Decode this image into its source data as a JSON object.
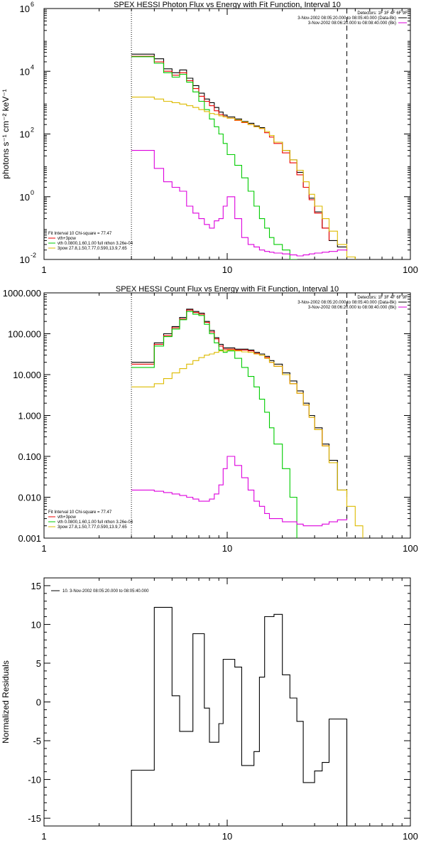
{
  "chart_data": [
    {
      "type": "line",
      "title": "SPEX HESSI Photon Flux vs Energy with Fit Function, Interval 10",
      "xlabel": "",
      "ylabel": "photons s⁻¹ cm⁻² keV⁻¹",
      "x_scale": "log",
      "y_scale": "log",
      "xlim": [
        1,
        100
      ],
      "ylim": [
        0.01,
        1000000
      ],
      "x_ticks": [
        {
          "v": 1,
          "label": "1"
        },
        {
          "v": 10,
          "label": "10"
        },
        {
          "v": 100,
          "label": "100"
        }
      ],
      "y_ticks": [
        {
          "v": 0.01,
          "base": "10",
          "exp": "-2"
        },
        {
          "v": 1,
          "base": "10",
          "exp": "0"
        },
        {
          "v": 100,
          "base": "10",
          "exp": "2"
        },
        {
          "v": 10000,
          "base": "10",
          "exp": "4"
        },
        {
          "v": 1000000,
          "base": "10",
          "exp": "6"
        }
      ],
      "vlines": [
        {
          "x": 3.0,
          "style": "dotted"
        },
        {
          "x": 45.0,
          "style": "dashed"
        }
      ],
      "legend_top": [
        {
          "text": "Detectors: 1F 3F 4F 6F 9F",
          "color": "#000000",
          "line": false
        },
        {
          "text": "3-Nov-2002 08:05:20.000 to 08:05:40.000 (Data-Bk)",
          "color": "#000000",
          "line": true
        },
        {
          "text": "3-Nov-2002 08:06:20.000 to 08:08:40.000 (Bk)",
          "color": "#dd00dd",
          "line": true
        }
      ],
      "legend_bottom": [
        {
          "text": "Fit Interval 10    Chi-square = 77.47",
          "color": "#000000",
          "line": false
        },
        {
          "text": "vth+3pow",
          "color": "#ee0000",
          "line": true
        },
        {
          "text": "vth 0.0800,1.60,1.00  full nthon 3.26e-04",
          "color": "#00cc00",
          "line": true
        },
        {
          "text": "3pow 27.8,1.50,7.77,0.590,13.9,7.65",
          "color": "#ddbb00",
          "line": true
        }
      ],
      "series": [
        {
          "color": "#000000",
          "x": [
            3.0,
            3.5,
            4.0,
            4.5,
            5.0,
            5.5,
            6.0,
            6.5,
            7.0,
            7.5,
            8.0,
            8.5,
            9.0,
            9.5,
            10.0,
            11.0,
            12.0,
            13.0,
            14.0,
            15.0,
            16.0,
            17.0,
            18.0,
            20.0,
            22.0,
            24.0,
            26.0,
            28.0,
            30.0,
            33.0,
            36.0,
            40.0,
            45.0
          ],
          "y": [
            35000,
            35000,
            25000,
            12000,
            9000,
            11000,
            6000,
            3500,
            2000,
            1300,
            1000,
            700,
            500,
            400,
            350,
            300,
            250,
            220,
            180,
            160,
            120,
            90,
            55,
            30,
            15,
            6,
            2,
            0.9,
            0.33,
            0.1,
            0.04,
            0.025,
            0.02
          ]
        },
        {
          "color": "#ee0000",
          "x": [
            3.0,
            3.5,
            4.0,
            4.5,
            5.0,
            5.5,
            6.0,
            6.5,
            7.0,
            7.5,
            8.0,
            8.5,
            9.0,
            9.5,
            10.0,
            11.0,
            12.0,
            13.0,
            14.0,
            15.0,
            16.0,
            17.0,
            18.0,
            20.0,
            22.0,
            24.0,
            26.0,
            28.0,
            30.0,
            33.0,
            36.0
          ],
          "y": [
            30000,
            30000,
            20000,
            10000,
            7500,
            9000,
            5000,
            2800,
            1600,
            1100,
            800,
            550,
            420,
            360,
            320,
            270,
            230,
            200,
            170,
            150,
            110,
            80,
            50,
            25,
            12,
            5,
            2,
            0.8,
            0.3,
            0.1,
            0.04
          ]
        },
        {
          "color": "#00cc00",
          "x": [
            3.0,
            3.5,
            4.0,
            4.5,
            5.0,
            5.5,
            6.0,
            6.5,
            7.0,
            7.5,
            8.0,
            8.5,
            9.0,
            9.5,
            10.0,
            11.0,
            12.0,
            13.0,
            14.0,
            15.0,
            16.0,
            17.0,
            18.0,
            20.0,
            22.0,
            24.0
          ],
          "y": [
            29000,
            29000,
            18000,
            9000,
            6500,
            8000,
            4500,
            2200,
            1100,
            600,
            300,
            170,
            100,
            50,
            22,
            10,
            4,
            1.5,
            0.5,
            0.2,
            0.1,
            0.05,
            0.03,
            0.02,
            0.01,
            0.005
          ]
        },
        {
          "color": "#ddbb00",
          "x": [
            3.0,
            3.5,
            4.0,
            4.5,
            5.0,
            5.5,
            6.0,
            6.5,
            7.0,
            7.5,
            8.0,
            8.5,
            9.0,
            9.5,
            10.0,
            11.0,
            12.0,
            13.0,
            14.0,
            15.0,
            16.0,
            17.0,
            18.0,
            20.0,
            22.0,
            24.0,
            26.0,
            28.0,
            30.0,
            33.0,
            36.0,
            40.0,
            45.0,
            50.0
          ],
          "y": [
            1500,
            1500,
            1300,
            1100,
            1000,
            900,
            800,
            700,
            600,
            520,
            450,
            420,
            380,
            350,
            320,
            280,
            240,
            200,
            170,
            150,
            120,
            90,
            55,
            30,
            15,
            7,
            3,
            1.2,
            0.5,
            0.2,
            0.08,
            0.03,
            0.012,
            0.005
          ]
        },
        {
          "color": "#dd00dd",
          "x": [
            3.0,
            3.5,
            4.0,
            4.5,
            5.0,
            5.5,
            6.0,
            6.5,
            7.0,
            7.5,
            8.0,
            8.5,
            9.0,
            9.5,
            10.0,
            11.0,
            12.0,
            13.0,
            14.0,
            15.0,
            16.0,
            17.0,
            18.0,
            20.0,
            22.0,
            24.0,
            26.0,
            28.0,
            30.0,
            33.0,
            36.0,
            40.0,
            45.0
          ],
          "y": [
            30,
            30,
            8,
            3,
            2,
            1.5,
            0.5,
            0.3,
            0.2,
            0.13,
            0.1,
            0.17,
            0.2,
            0.5,
            1,
            0.2,
            0.05,
            0.03,
            0.025,
            0.02,
            0.018,
            0.017,
            0.016,
            0.015,
            0.014,
            0.013,
            0.014,
            0.015,
            0.016,
            0.017,
            0.018,
            0.02,
            0.019
          ]
        }
      ]
    },
    {
      "type": "line",
      "title": "SPEX HESSI Count Flux vs Energy with Fit Function, Interval 10",
      "xlabel": "",
      "ylabel": "",
      "x_scale": "log",
      "y_scale": "log",
      "xlim": [
        1,
        100
      ],
      "ylim": [
        0.001,
        1000
      ],
      "x_ticks": [
        {
          "v": 1,
          "label": "1"
        },
        {
          "v": 10,
          "label": "10"
        },
        {
          "v": 100,
          "label": "100"
        }
      ],
      "y_ticks": [
        {
          "v": 0.001,
          "label": "0.001"
        },
        {
          "v": 0.01,
          "label": "0.010"
        },
        {
          "v": 0.1,
          "label": "0.100"
        },
        {
          "v": 1,
          "label": "1.000"
        },
        {
          "v": 10,
          "label": "10.000"
        },
        {
          "v": 100,
          "label": "100.000"
        },
        {
          "v": 1000,
          "label": "1000.000"
        }
      ],
      "vlines": [
        {
          "x": 3.0,
          "style": "dotted"
        },
        {
          "x": 45.0,
          "style": "dashed"
        }
      ],
      "legend_top": [
        {
          "text": "Detectors: 1F 3F 4F 6F 9F",
          "color": "#000000",
          "line": false
        },
        {
          "text": "3-Nov-2002 08:05:20.000 to 08:05:40.000 (Data-Bk)",
          "color": "#000000",
          "line": true
        },
        {
          "text": "3-Nov-2002 08:06:20.000 to 08:08:40.000 (Bk)",
          "color": "#dd00dd",
          "line": true
        }
      ],
      "legend_bottom": [
        {
          "text": "Fit Interval 10    Chi-square = 77.47",
          "color": "#000000",
          "line": false
        },
        {
          "text": "vth+3pow",
          "color": "#ee0000",
          "line": true
        },
        {
          "text": "vth 0.0800,1.60,1.00  full nthon 3.26e-04",
          "color": "#00cc00",
          "line": true
        },
        {
          "text": "3pow 27.8,1.50,7.77,0.590,13.9,7.65",
          "color": "#ddbb00",
          "line": true
        }
      ],
      "series": [
        {
          "color": "#000000",
          "x": [
            3.0,
            3.5,
            4.0,
            4.5,
            5.0,
            5.5,
            6.0,
            6.5,
            7.0,
            7.5,
            8.0,
            8.5,
            9.0,
            9.5,
            10.0,
            11.0,
            12.0,
            13.0,
            14.0,
            15.0,
            16.0,
            17.0,
            18.0,
            20.0,
            22.0,
            24.0,
            26.0,
            28.0,
            30.0,
            33.0,
            36.0,
            40.0,
            45.0
          ],
          "y": [
            20,
            20,
            60,
            100,
            150,
            250,
            400,
            350,
            320,
            200,
            120,
            80,
            55,
            45,
            45,
            42,
            42,
            40,
            35,
            32,
            28,
            22,
            18,
            11,
            7,
            4,
            2,
            1,
            0.5,
            0.2,
            0.08,
            0.015,
            0.01
          ]
        },
        {
          "color": "#ee0000",
          "x": [
            3.0,
            3.5,
            4.0,
            4.5,
            5.0,
            5.5,
            6.0,
            6.5,
            7.0,
            7.5,
            8.0,
            8.5,
            9.0,
            9.5,
            10.0,
            11.0,
            12.0,
            13.0,
            14.0,
            15.0,
            16.0,
            17.0,
            18.0,
            20.0,
            22.0,
            24.0,
            26.0,
            28.0,
            30.0,
            33.0,
            36.0
          ],
          "y": [
            18,
            18,
            55,
            90,
            140,
            230,
            380,
            330,
            300,
            190,
            110,
            75,
            50,
            42,
            42,
            40,
            40,
            38,
            33,
            30,
            26,
            20,
            16,
            10,
            6,
            3.5,
            1.8,
            0.9,
            0.45,
            0.18,
            0.07
          ]
        },
        {
          "color": "#00cc00",
          "x": [
            3.0,
            3.5,
            4.0,
            4.5,
            5.0,
            5.5,
            6.0,
            6.5,
            7.0,
            7.5,
            8.0,
            8.5,
            9.0,
            9.5,
            10.0,
            11.0,
            12.0,
            13.0,
            14.0,
            15.0,
            16.0,
            17.0,
            18.0,
            20.0,
            22.0,
            24.0
          ],
          "y": [
            15,
            15,
            50,
            85,
            130,
            220,
            350,
            300,
            280,
            170,
            100,
            60,
            40,
            35,
            38,
            25,
            15,
            9,
            5,
            2.5,
            1.2,
            0.5,
            0.2,
            0.05,
            0.01,
            0.001
          ]
        },
        {
          "color": "#ddbb00",
          "x": [
            3.0,
            3.5,
            4.0,
            4.5,
            5.0,
            5.5,
            6.0,
            6.5,
            7.0,
            7.5,
            8.0,
            8.5,
            9.0,
            9.5,
            10.0,
            11.0,
            12.0,
            13.0,
            14.0,
            15.0,
            16.0,
            17.0,
            18.0,
            20.0,
            22.0,
            24.0,
            26.0,
            28.0,
            30.0,
            33.0,
            36.0,
            40.0,
            45.0,
            50.0,
            55.0
          ],
          "y": [
            5,
            5,
            6,
            8,
            11,
            14,
            18,
            22,
            26,
            30,
            32,
            35,
            38,
            38,
            40,
            38,
            36,
            35,
            32,
            30,
            25,
            20,
            16,
            10,
            6,
            3.5,
            1.8,
            0.9,
            0.45,
            0.18,
            0.07,
            0.015,
            0.006,
            0.002,
            0.001
          ]
        },
        {
          "color": "#dd00dd",
          "x": [
            3.0,
            3.5,
            4.0,
            4.5,
            5.0,
            5.5,
            6.0,
            6.5,
            7.0,
            7.5,
            8.0,
            8.5,
            9.0,
            9.5,
            10.0,
            11.0,
            12.0,
            13.0,
            14.0,
            15.0,
            16.0,
            17.0,
            18.0,
            20.0,
            22.0,
            24.0,
            26.0,
            28.0,
            30.0,
            33.0,
            36.0,
            40.0,
            45.0
          ],
          "y": [
            0.015,
            0.015,
            0.014,
            0.013,
            0.012,
            0.011,
            0.01,
            0.009,
            0.008,
            0.008,
            0.009,
            0.012,
            0.02,
            0.05,
            0.1,
            0.06,
            0.03,
            0.015,
            0.008,
            0.006,
            0.004,
            0.003,
            0.003,
            0.0025,
            0.0025,
            0.0022,
            0.002,
            0.002,
            0.002,
            0.0022,
            0.0025,
            0.0028,
            0.003
          ]
        }
      ]
    },
    {
      "type": "line",
      "title": "",
      "xlabel": "",
      "ylabel": "Normalized Residuals",
      "x_scale": "log",
      "y_scale": "linear",
      "xlim": [
        1,
        100
      ],
      "ylim": [
        -16,
        16
      ],
      "x_ticks": [
        {
          "v": 1,
          "label": "1"
        },
        {
          "v": 10,
          "label": "10"
        },
        {
          "v": 100,
          "label": "100"
        }
      ],
      "y_ticks": [
        {
          "v": -15,
          "label": "-15"
        },
        {
          "v": -10,
          "label": "-10"
        },
        {
          "v": -5,
          "label": "-5"
        },
        {
          "v": 0,
          "label": "0"
        },
        {
          "v": 5,
          "label": "5"
        },
        {
          "v": 10,
          "label": "10"
        },
        {
          "v": 15,
          "label": "15"
        }
      ],
      "vlines": [],
      "legend_top": [
        {
          "text": "10.  3-Nov-2002 08:05:20.000 to 08:05:40.000",
          "color": "#000000",
          "line": true
        }
      ],
      "legend_bottom": [],
      "series": [
        {
          "color": "#000000",
          "drop_to_bottom": true,
          "x": [
            3.0,
            3.5,
            4.0,
            4.5,
            5.0,
            5.5,
            6.0,
            6.5,
            7.0,
            7.5,
            8.0,
            8.5,
            9.0,
            9.5,
            10.0,
            11.0,
            12.0,
            13.0,
            14.0,
            15.0,
            16.0,
            17.0,
            18.0,
            20.0,
            22.0,
            24.0,
            26.0,
            28.0,
            30.0,
            33.0,
            36.0,
            40.0,
            45.0
          ],
          "y": [
            -8.8,
            -8.8,
            12.2,
            12.2,
            0.8,
            -3.8,
            -3.8,
            8.8,
            8.8,
            -0.8,
            -5.2,
            -5.2,
            -2.8,
            5.5,
            5.5,
            4.5,
            -8.2,
            -8.2,
            -6.4,
            3.2,
            11.0,
            11.0,
            11.3,
            3.5,
            0.5,
            -2.5,
            -10.4,
            -10.4,
            -8.9,
            -7.8,
            -2.2,
            -2.2,
            -2.2
          ]
        }
      ]
    }
  ]
}
